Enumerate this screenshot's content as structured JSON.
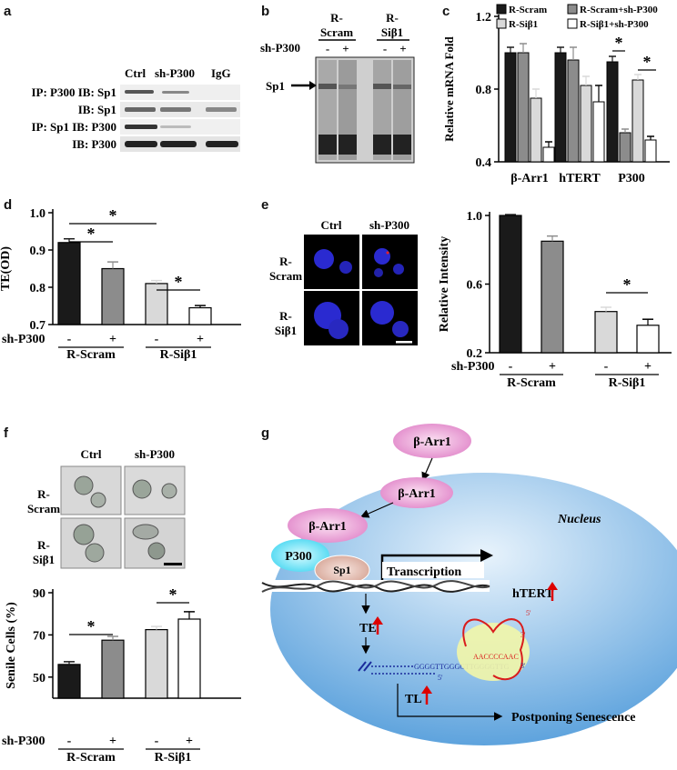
{
  "panel_labels": {
    "a": "a",
    "b": "b",
    "c": "c",
    "d": "d",
    "e": "e",
    "f": "f",
    "g": "g"
  },
  "panel_a": {
    "columns": [
      "Ctrl",
      "sh-P300",
      "IgG"
    ],
    "rows": [
      "IP: P300 IB: Sp1",
      "IB: Sp1",
      "IP: Sp1 IB: P300",
      "IB: P300"
    ]
  },
  "panel_b": {
    "groups": [
      "R-\nScram",
      "R-\nSiβ1"
    ],
    "group_line1": [
      "R-",
      "R-"
    ],
    "group_line2": [
      "Scram",
      "Siβ1"
    ],
    "shp300_label": "sh-P300",
    "signs": [
      "-",
      "+",
      "-",
      "+"
    ],
    "arrow_label": "Sp1"
  },
  "chart_data": [
    {
      "type": "bar",
      "panel": "c",
      "ylabel": "Relative mRNA Fold",
      "ylim": [
        0.4,
        1.2
      ],
      "yticks": [
        "0.4",
        "0.8",
        "1.2"
      ],
      "categories": [
        "β-Arr1",
        "hTERT",
        "P300"
      ],
      "series": [
        {
          "name": "R-Scram",
          "color": "#1a1a1a",
          "values": [
            1.0,
            1.0,
            0.95
          ]
        },
        {
          "name": "R-Scram+sh-P300",
          "color": "#8c8c8c",
          "values": [
            1.0,
            0.96,
            0.56
          ]
        },
        {
          "name": "R-Siβ1",
          "color": "#d9d9d9",
          "values": [
            0.75,
            0.82,
            0.85
          ]
        },
        {
          "name": "R-Siβ1+sh-P300",
          "color": "#ffffff",
          "values": [
            0.48,
            0.73,
            0.52
          ]
        }
      ],
      "errors": [
        [
          0.03,
          0.03,
          0.03
        ],
        [
          0.05,
          0.07,
          0.02
        ],
        [
          0.05,
          0.05,
          0.03
        ],
        [
          0.03,
          0.09,
          0.02
        ]
      ],
      "significance": [
        "*",
        "*"
      ]
    },
    {
      "type": "bar",
      "panel": "d",
      "ylabel": "TE(OD)",
      "ylim": [
        0.7,
        1.0
      ],
      "yticks": [
        "0.7",
        "0.8",
        "0.9",
        "1.0"
      ],
      "categories": [
        "R-Scram -",
        "R-Scram +",
        "R-Siβ1 -",
        "R-Siβ1 +"
      ],
      "values": [
        0.92,
        0.85,
        0.81,
        0.745
      ],
      "errors": [
        0.01,
        0.018,
        0.008,
        0.006
      ],
      "colors": [
        "#1a1a1a",
        "#8c8c8c",
        "#d9d9d9",
        "#ffffff"
      ],
      "xgroups": [
        "R-Scram",
        "R-Siβ1"
      ],
      "shp300_label": "sh-P300",
      "signs": [
        "-",
        "+",
        "-",
        "+"
      ],
      "significance": [
        "*",
        "*",
        "*"
      ]
    },
    {
      "type": "bar",
      "panel": "e",
      "ylabel": "Relative Intensity",
      "ylim": [
        0.2,
        1.0
      ],
      "yticks": [
        "0.2",
        "0.6",
        "1.0"
      ],
      "categories": [
        "R-Scram -",
        "R-Scram +",
        "R-Siβ1 -",
        "R-Siβ1 +"
      ],
      "values": [
        1.0,
        0.85,
        0.44,
        0.36
      ],
      "errors": [
        0.005,
        0.03,
        0.025,
        0.035
      ],
      "colors": [
        "#1a1a1a",
        "#8c8c8c",
        "#d9d9d9",
        "#ffffff"
      ],
      "xgroups": [
        "R-Scram",
        "R-Siβ1"
      ],
      "shp300_label": "sh-P300",
      "signs": [
        "-",
        "+",
        "-",
        "+"
      ],
      "significance": [
        "*"
      ]
    },
    {
      "type": "bar",
      "panel": "f",
      "ylabel": "Senile Cells (%)",
      "ylim": [
        40,
        90
      ],
      "yticks": [
        "50",
        "70",
        "90"
      ],
      "categories": [
        "R-Scram -",
        "R-Scram +",
        "R-Siβ1 -",
        "R-Siβ1 +"
      ],
      "values": [
        56,
        67.5,
        72.5,
        77.5
      ],
      "errors": [
        1.3,
        1.8,
        1.5,
        3.5
      ],
      "colors": [
        "#1a1a1a",
        "#8c8c8c",
        "#d9d9d9",
        "#ffffff"
      ],
      "xgroups": [
        "R-Scram",
        "R-Siβ1"
      ],
      "shp300_label": "sh-P300",
      "signs": [
        "-",
        "+",
        "-",
        "+"
      ],
      "significance": [
        "*",
        "*"
      ]
    }
  ],
  "panel_e_images": {
    "cols": [
      "Ctrl",
      "sh-P300"
    ],
    "row1": [
      "R-",
      "Scram"
    ],
    "row2": [
      "R-",
      "Siβ1"
    ]
  },
  "panel_f_images": {
    "cols": [
      "Ctrl",
      "sh-P300"
    ],
    "row1": [
      "R-",
      "Scram"
    ],
    "row2": [
      "R-",
      "Siβ1"
    ]
  },
  "panel_g": {
    "barr1": "β-Arr1",
    "nucleus": "Nucleus",
    "p300": "P300",
    "sp1": "Sp1",
    "transcription": "Transcription",
    "htert": "hTERT",
    "te": "TE",
    "tl": "TL",
    "postponing": "Postponing Senescence",
    "seq_main": "GGGGTTGGGGTTGGGGTTG",
    "seq_end": "3'",
    "seq_5": "5'",
    "rna_template": "AACCCCAAC",
    "rna_3": "3'",
    "rna_5": "5'"
  }
}
